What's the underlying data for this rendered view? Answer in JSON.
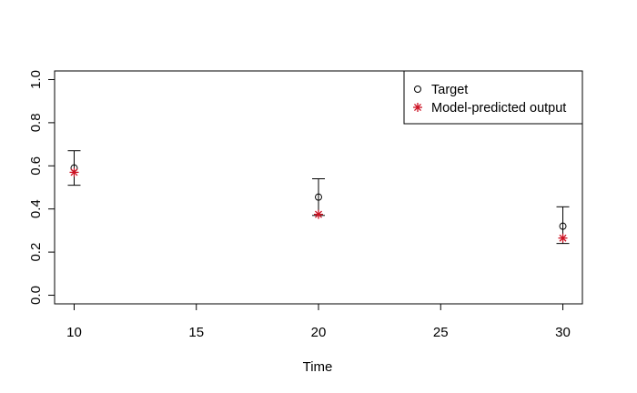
{
  "chart_data": {
    "type": "scatter",
    "title": "",
    "xlabel": "Time",
    "ylabel": "",
    "xlim": [
      9.2,
      30.8
    ],
    "ylim": [
      -0.04,
      1.04
    ],
    "x_ticks": [
      10,
      15,
      20,
      25,
      30
    ],
    "x_tick_labels": [
      "10",
      "15",
      "20",
      "25",
      "30"
    ],
    "y_ticks": [
      0.0,
      0.2,
      0.4,
      0.6,
      0.8,
      1.0
    ],
    "y_tick_labels": [
      "0.0",
      "0.2",
      "0.4",
      "0.6",
      "0.8",
      "1.0"
    ],
    "grid": false,
    "legend_position": "top-right",
    "series": [
      {
        "name": "Target",
        "marker": "open-circle",
        "color": "#000000",
        "x": [
          10,
          20,
          30
        ],
        "y": [
          0.59,
          0.455,
          0.32
        ],
        "error_low": [
          0.51,
          0.37,
          0.24
        ],
        "error_high": [
          0.67,
          0.54,
          0.41
        ]
      },
      {
        "name": "Model-predicted output",
        "marker": "asterisk",
        "color": "#cc1122",
        "x": [
          10,
          20,
          30
        ],
        "y": [
          0.57,
          0.375,
          0.265
        ]
      }
    ]
  }
}
